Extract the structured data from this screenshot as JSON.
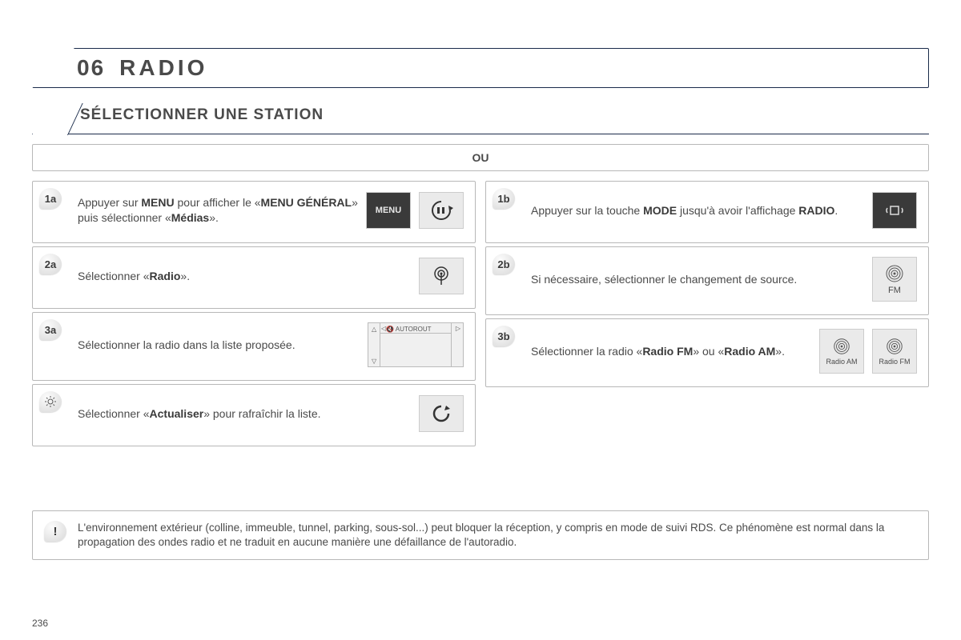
{
  "page": {
    "number": "236"
  },
  "title": {
    "num": "06",
    "text": "RADIO"
  },
  "subtitle": "SÉLECTIONNER UNE STATION",
  "separator": "OU",
  "left": [
    {
      "badge": "1a",
      "html": "Appuyer sur <b>MENU</b> pour afficher le «<b>MENU GÉNÉRAL</b>» puis sélectionner «<b>Médias</b>»."
    },
    {
      "badge": "2a",
      "html": "Sélectionner «<b>Radio</b>»."
    },
    {
      "badge": "3a",
      "html": "Sélectionner la radio dans la liste proposée."
    },
    {
      "badge": "sun",
      "html": "Sélectionner «<b>Actualiser</b>» pour rafraîchir la liste."
    }
  ],
  "right": [
    {
      "badge": "1b",
      "html": "Appuyer sur la touche <b>MODE</b> jusqu'à avoir l'affichage <b>RADIO</b>."
    },
    {
      "badge": "2b",
      "html": "Si nécessaire, sélectionner le changement de source."
    },
    {
      "badge": "3b",
      "html": "Sélectionner la radio «<b>Radio FM</b>» ou «<b>Radio AM</b>»."
    }
  ],
  "note": "L'environnement extérieur (colline, immeuble, tunnel, parking, sous-sol...) peut bloquer la réception, y compris en mode de suivi RDS. Ce phénomène est normal dans la propagation des ondes radio et ne traduit en aucune manière une défaillance de l'autoradio.",
  "icons": {
    "menu_label": "MENU",
    "fm_label": "FM",
    "radio_am": "Radio AM",
    "radio_fm": "Radio FM",
    "autorout": "AUTOROUT"
  },
  "style": {
    "border_color": "#1a2b4a",
    "box_border": "#b8b8b8",
    "text_color": "#4a4a4a",
    "icon_bg": "#eaeaea",
    "icon_dark": "#3a3a3a"
  }
}
